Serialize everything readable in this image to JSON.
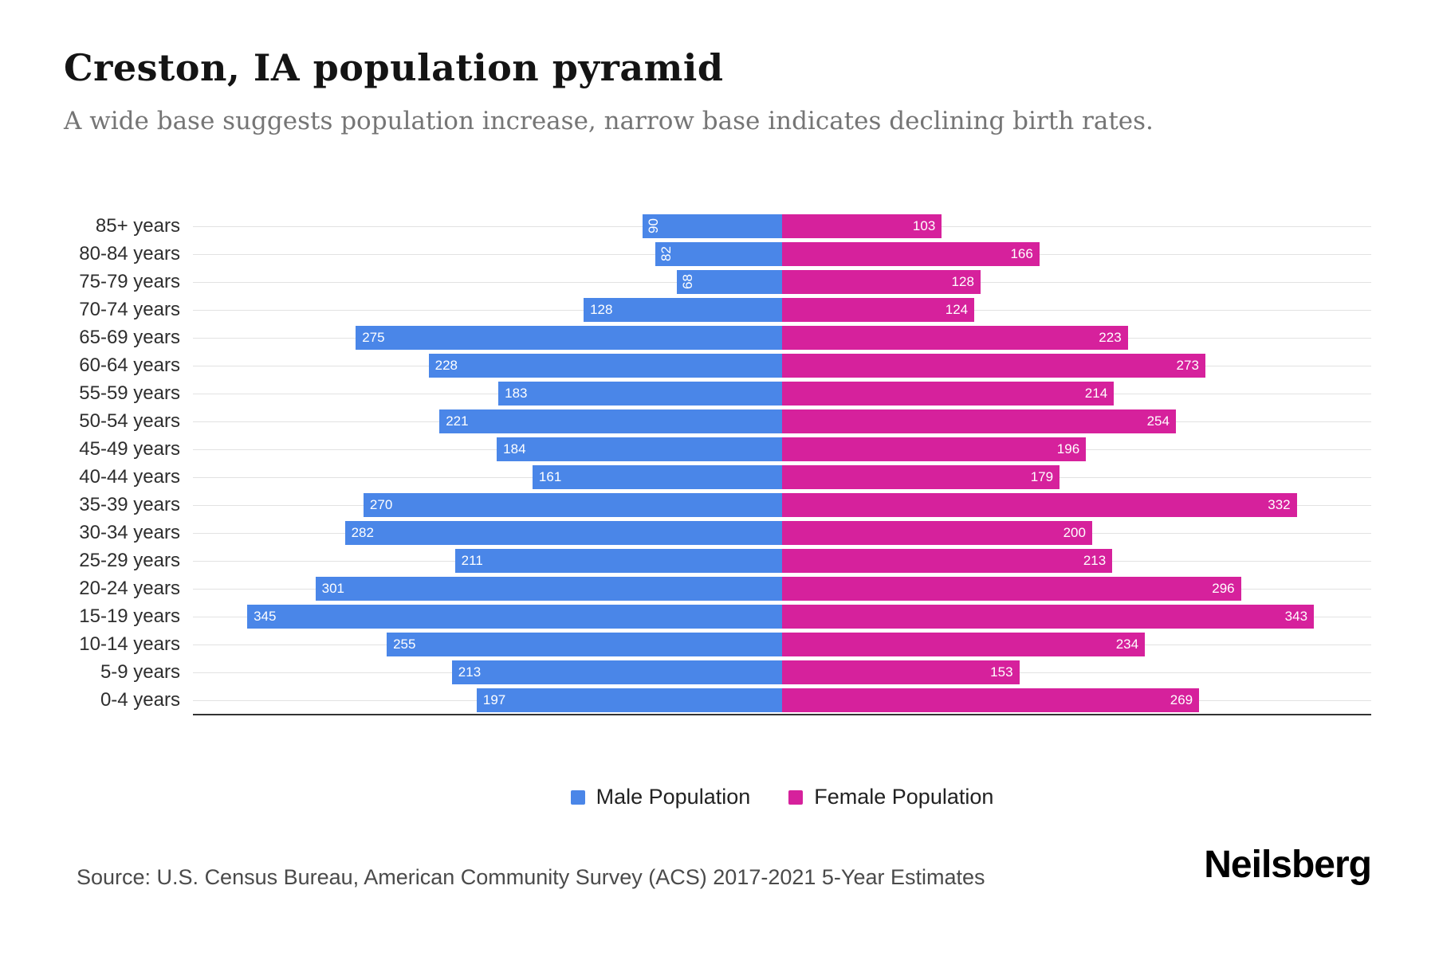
{
  "title": "Creston, IA population pyramid",
  "subtitle": "A wide base suggests population increase, narrow base indicates declining birth rates.",
  "legend": {
    "male": "Male Population",
    "female": "Female Population"
  },
  "source": "Source: U.S. Census Bureau, American Community Survey (ACS) 2017-2021 5-Year Estimates",
  "brand": "Neilsberg",
  "colors": {
    "male": "#4a86e8",
    "female": "#d6219c"
  },
  "chart_data": {
    "type": "bar",
    "subtype": "population-pyramid",
    "orientation": "horizontal",
    "title": "Creston, IA population pyramid",
    "categories": [
      "85+ years",
      "80-84 years",
      "75-79 years",
      "70-74 years",
      "65-69 years",
      "60-64 years",
      "55-59 years",
      "50-54 years",
      "45-49 years",
      "40-44 years",
      "35-39 years",
      "30-34 years",
      "25-29 years",
      "20-24 years",
      "15-19 years",
      "10-14 years",
      "5-9 years",
      "0-4 years"
    ],
    "series": [
      {
        "name": "Male Population",
        "color": "#4a86e8",
        "values": [
          90,
          82,
          68,
          128,
          275,
          228,
          183,
          221,
          184,
          161,
          270,
          282,
          211,
          301,
          345,
          255,
          213,
          197
        ]
      },
      {
        "name": "Female Population",
        "color": "#d6219c",
        "values": [
          103,
          166,
          128,
          124,
          223,
          273,
          214,
          254,
          196,
          179,
          332,
          200,
          213,
          296,
          343,
          234,
          153,
          269
        ]
      }
    ],
    "xlim": [
      0,
      380
    ],
    "grid": true,
    "legend_position": "bottom",
    "value_labels": "inside-ends"
  }
}
